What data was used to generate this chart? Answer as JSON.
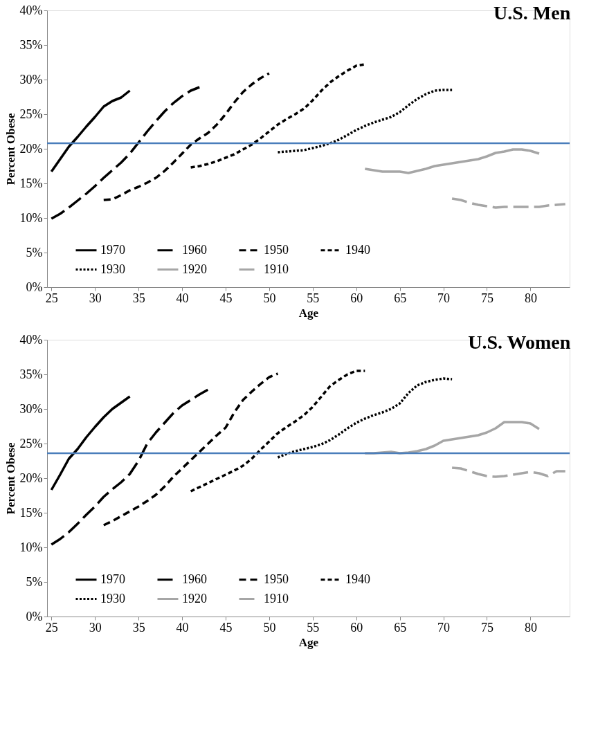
{
  "chart_data": [
    {
      "type": "line",
      "title": "U.S. Men",
      "xlabel": "Age",
      "ylabel": "Percent Obese",
      "xlim": [
        24.5,
        84.5
      ],
      "xticks": [
        25,
        30,
        35,
        40,
        45,
        50,
        55,
        60,
        65,
        70,
        75,
        80
      ],
      "ylim": [
        0,
        40
      ],
      "yticks": [
        {
          "value": 0,
          "label": "0%"
        },
        {
          "value": 5,
          "label": "5%"
        },
        {
          "value": 10,
          "label": "10%"
        },
        {
          "value": 15,
          "label": "15%"
        },
        {
          "value": 20,
          "label": "20%"
        },
        {
          "value": 25,
          "label": "25%"
        },
        {
          "value": 30,
          "label": "30%"
        },
        {
          "value": 35,
          "label": "35%"
        },
        {
          "value": 40,
          "label": "40%"
        }
      ],
      "grid": false,
      "legend": "bottom",
      "ref_lines": [
        {
          "axis": "y",
          "value": 20.8,
          "color": "#4a7ebb"
        }
      ],
      "series": [
        {
          "name": "1970",
          "color": "#000000",
          "line_style": "solid",
          "x": [
            25,
            26,
            27,
            28,
            29,
            30,
            31,
            32,
            33,
            34
          ],
          "values": [
            16.7,
            18.5,
            20.3,
            21.7,
            23.2,
            24.6,
            26.1,
            26.9,
            27.4,
            28.4
          ]
        },
        {
          "name": "1960",
          "color": "#000000",
          "line_style": "dashed",
          "x": [
            25,
            26,
            27,
            28,
            29,
            30,
            31,
            32,
            33,
            34,
            35,
            36,
            37,
            38,
            39,
            40,
            41,
            42
          ],
          "values": [
            9.9,
            10.6,
            11.5,
            12.5,
            13.5,
            14.6,
            15.8,
            16.9,
            18.0,
            19.3,
            20.9,
            22.5,
            24.0,
            25.4,
            26.6,
            27.6,
            28.4,
            28.9
          ]
        },
        {
          "name": "1950",
          "color": "#000000",
          "line_style": "dashed",
          "x": [
            31,
            32,
            33,
            34,
            35,
            36,
            37,
            38,
            39,
            40,
            41,
            42,
            43,
            44,
            45,
            46,
            47,
            48,
            49,
            50
          ],
          "values": [
            12.6,
            12.7,
            13.3,
            14.0,
            14.5,
            15.1,
            15.8,
            16.8,
            18.0,
            19.3,
            20.6,
            21.5,
            22.3,
            23.5,
            25.0,
            26.7,
            28.2,
            29.3,
            30.2,
            30.9
          ]
        },
        {
          "name": "1940",
          "color": "#000000",
          "line_style": "dashed",
          "x": [
            41,
            42,
            43,
            44,
            45,
            46,
            47,
            48,
            49,
            50,
            51,
            52,
            53,
            54,
            55,
            56,
            57,
            58,
            59,
            60,
            61
          ],
          "values": [
            17.3,
            17.5,
            17.8,
            18.2,
            18.7,
            19.2,
            19.9,
            20.6,
            21.5,
            22.5,
            23.5,
            24.3,
            25.0,
            25.8,
            27.0,
            28.4,
            29.6,
            30.5,
            31.3,
            32.0,
            32.2
          ]
        },
        {
          "name": "1930",
          "color": "#000000",
          "line_style": "dotted",
          "x": [
            51,
            52,
            53,
            54,
            55,
            56,
            57,
            58,
            59,
            60,
            61,
            62,
            63,
            64,
            65,
            66,
            67,
            68,
            69,
            70,
            71
          ],
          "values": [
            19.5,
            19.6,
            19.7,
            19.8,
            20.1,
            20.4,
            20.8,
            21.3,
            22.0,
            22.7,
            23.3,
            23.8,
            24.2,
            24.6,
            25.3,
            26.3,
            27.2,
            27.9,
            28.4,
            28.5,
            28.5
          ]
        },
        {
          "name": "1920",
          "color": "#a6a6a6",
          "line_style": "solid",
          "x": [
            61,
            62,
            63,
            64,
            65,
            66,
            67,
            68,
            69,
            70,
            71,
            72,
            73,
            74,
            75,
            76,
            77,
            78,
            79,
            80,
            81
          ],
          "values": [
            17.1,
            16.9,
            16.7,
            16.7,
            16.7,
            16.5,
            16.8,
            17.1,
            17.5,
            17.7,
            17.9,
            18.1,
            18.3,
            18.5,
            18.9,
            19.4,
            19.6,
            19.9,
            19.9,
            19.7,
            19.3
          ]
        },
        {
          "name": "1910",
          "color": "#a6a6a6",
          "line_style": "dashed",
          "x": [
            71,
            72,
            73,
            74,
            75,
            76,
            77,
            78,
            79,
            80,
            81,
            82,
            83,
            84
          ],
          "values": [
            12.8,
            12.6,
            12.2,
            11.9,
            11.7,
            11.5,
            11.6,
            11.6,
            11.6,
            11.6,
            11.6,
            11.8,
            11.9,
            12.0
          ]
        }
      ]
    },
    {
      "type": "line",
      "title": "U.S. Women",
      "xlabel": "Age",
      "ylabel": "Percent Obese",
      "xlim": [
        24.5,
        84.5
      ],
      "xticks": [
        25,
        30,
        35,
        40,
        45,
        50,
        55,
        60,
        65,
        70,
        75,
        80
      ],
      "ylim": [
        0,
        40
      ],
      "yticks": [
        {
          "value": 0,
          "label": "0%"
        },
        {
          "value": 5,
          "label": "5%"
        },
        {
          "value": 10,
          "label": "10%"
        },
        {
          "value": 15,
          "label": "15%"
        },
        {
          "value": 20,
          "label": "20%"
        },
        {
          "value": 25,
          "label": "25%"
        },
        {
          "value": 30,
          "label": "30%"
        },
        {
          "value": 35,
          "label": "35%"
        },
        {
          "value": 40,
          "label": "40%"
        }
      ],
      "grid": false,
      "legend": "bottom",
      "ref_lines": [
        {
          "axis": "y",
          "value": 23.6,
          "color": "#4a7ebb"
        }
      ],
      "series": [
        {
          "name": "1970",
          "color": "#000000",
          "line_style": "solid",
          "x": [
            25,
            26,
            27,
            28,
            29,
            30,
            31,
            32,
            33,
            34
          ],
          "values": [
            18.3,
            20.5,
            22.8,
            24.2,
            25.9,
            27.4,
            28.8,
            30.0,
            30.9,
            31.8
          ]
        },
        {
          "name": "1960",
          "color": "#000000",
          "line_style": "dashed",
          "x": [
            25,
            26,
            27,
            28,
            29,
            30,
            31,
            32,
            33,
            34,
            35,
            36,
            37,
            38,
            39,
            40,
            41,
            42,
            43
          ],
          "values": [
            10.4,
            11.2,
            12.2,
            13.4,
            14.7,
            15.9,
            17.3,
            18.4,
            19.4,
            20.6,
            22.5,
            25.0,
            26.6,
            28.0,
            29.4,
            30.5,
            31.3,
            32.1,
            32.8
          ]
        },
        {
          "name": "1950",
          "color": "#000000",
          "line_style": "dashed",
          "x": [
            31,
            32,
            33,
            34,
            35,
            36,
            37,
            38,
            39,
            40,
            41,
            42,
            43,
            44,
            45,
            46,
            47,
            48,
            49,
            50,
            51
          ],
          "values": [
            13.2,
            13.8,
            14.5,
            15.2,
            15.9,
            16.7,
            17.6,
            18.8,
            20.2,
            21.4,
            22.6,
            23.8,
            25.0,
            26.2,
            27.3,
            29.5,
            31.3,
            32.5,
            33.6,
            34.6,
            35.1
          ]
        },
        {
          "name": "1940",
          "color": "#000000",
          "line_style": "dashed",
          "x": [
            41,
            42,
            43,
            44,
            45,
            46,
            47,
            48,
            49,
            50,
            51,
            52,
            53,
            54,
            55,
            56,
            57,
            58,
            59,
            60,
            61
          ],
          "values": [
            18.1,
            18.7,
            19.3,
            19.9,
            20.5,
            21.1,
            21.8,
            22.8,
            24.1,
            25.3,
            26.5,
            27.4,
            28.2,
            29.1,
            30.3,
            31.8,
            33.3,
            34.2,
            35.0,
            35.5,
            35.5
          ]
        },
        {
          "name": "1930",
          "color": "#000000",
          "line_style": "dotted",
          "x": [
            51,
            52,
            53,
            54,
            55,
            56,
            57,
            58,
            59,
            60,
            61,
            62,
            63,
            64,
            65,
            66,
            67,
            68,
            69,
            70,
            71
          ],
          "values": [
            23.0,
            23.5,
            23.9,
            24.2,
            24.5,
            24.9,
            25.5,
            26.3,
            27.2,
            28.0,
            28.6,
            29.1,
            29.5,
            30.0,
            30.8,
            32.3,
            33.4,
            33.9,
            34.2,
            34.4,
            34.3
          ]
        },
        {
          "name": "1920",
          "color": "#a6a6a6",
          "line_style": "solid",
          "x": [
            61,
            62,
            63,
            64,
            65,
            66,
            67,
            68,
            69,
            70,
            71,
            72,
            73,
            74,
            75,
            76,
            77,
            78,
            79,
            80,
            81
          ],
          "values": [
            23.6,
            23.6,
            23.7,
            23.8,
            23.6,
            23.7,
            23.9,
            24.2,
            24.7,
            25.4,
            25.6,
            25.8,
            26.0,
            26.2,
            26.6,
            27.2,
            28.1,
            28.1,
            28.1,
            27.9,
            27.1
          ]
        },
        {
          "name": "1910",
          "color": "#a6a6a6",
          "line_style": "dashed",
          "x": [
            71,
            72,
            73,
            74,
            75,
            76,
            77,
            78,
            79,
            80,
            81,
            82,
            83,
            84
          ],
          "values": [
            21.5,
            21.4,
            21.0,
            20.6,
            20.3,
            20.2,
            20.3,
            20.5,
            20.7,
            20.9,
            20.7,
            20.3,
            21.0,
            21.0
          ]
        }
      ]
    }
  ]
}
